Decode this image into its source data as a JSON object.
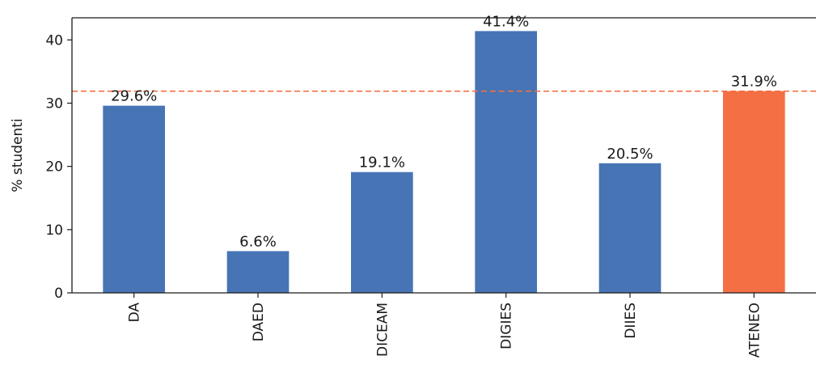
{
  "chart_data": {
    "type": "bar",
    "categories": [
      "DA",
      "DAED",
      "DICEAM",
      "DIGIES",
      "DIIES",
      "ATENEO"
    ],
    "values": [
      29.6,
      6.6,
      19.1,
      41.4,
      20.5,
      31.9
    ],
    "data_labels": [
      "29.6%",
      "6.6%",
      "19.1%",
      "41.4%",
      "20.5%",
      "31.9%"
    ],
    "ylabel": "% studenti",
    "xlabel": "",
    "ylim": [
      0,
      43.5
    ],
    "yticks": [
      0,
      10,
      20,
      30,
      40
    ],
    "reference_line": {
      "value": 31.9,
      "style": "dashed"
    },
    "grid": false,
    "legend": false,
    "colors": {
      "default_bar": "#4674b5",
      "highlight_bar": "#f46f44",
      "reference_line": "#f46f44",
      "axis": "#1a1a1a"
    },
    "highlight_category": "ATENEO"
  }
}
